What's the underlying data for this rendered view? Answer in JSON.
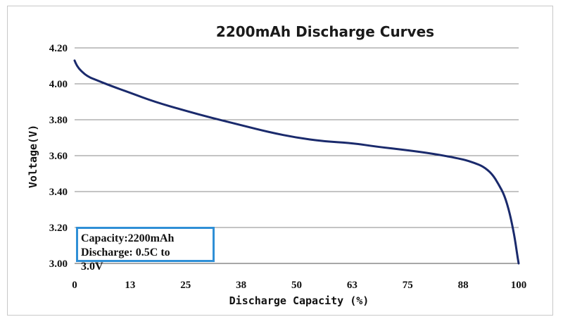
{
  "chart_data": {
    "type": "line",
    "title": "2200mAh  Discharge  Curves",
    "xlabel": "Discharge  Capacity (%)",
    "ylabel": "Voltage(V)",
    "x_ticks": [
      "0",
      "13",
      "25",
      "38",
      "50",
      "63",
      "75",
      "88",
      "100"
    ],
    "x_tick_values": [
      0,
      12.5,
      25,
      37.5,
      50,
      62.5,
      75,
      87.5,
      100
    ],
    "y_ticks": [
      "3.00",
      "3.20",
      "3.40",
      "3.60",
      "3.80",
      "4.00",
      "4.20"
    ],
    "xlim": [
      0,
      100
    ],
    "ylim": [
      3.0,
      4.2
    ],
    "grid": "horizontal",
    "series": [
      {
        "color": "#1a2a6c",
        "points": [
          [
            0,
            4.13
          ],
          [
            0.5,
            4.1
          ],
          [
            1.5,
            4.07
          ],
          [
            3,
            4.04
          ],
          [
            5,
            4.02
          ],
          [
            8,
            3.99
          ],
          [
            12.5,
            3.95
          ],
          [
            18,
            3.9
          ],
          [
            25,
            3.85
          ],
          [
            31,
            3.81
          ],
          [
            37.5,
            3.77
          ],
          [
            44,
            3.73
          ],
          [
            50,
            3.7
          ],
          [
            56,
            3.68
          ],
          [
            62.5,
            3.67
          ],
          [
            68,
            3.65
          ],
          [
            75,
            3.63
          ],
          [
            81,
            3.61
          ],
          [
            87.5,
            3.58
          ],
          [
            90,
            3.56
          ],
          [
            92,
            3.54
          ],
          [
            94,
            3.5
          ],
          [
            95.5,
            3.44
          ],
          [
            96.8,
            3.38
          ],
          [
            98,
            3.28
          ],
          [
            99,
            3.16
          ],
          [
            99.6,
            3.06
          ],
          [
            100,
            3.0
          ]
        ]
      }
    ],
    "annotation": {
      "line1": "Capacity:2200mAh",
      "line2": "Discharge: 0.5C to",
      "line3": "3.0V"
    },
    "colors": {
      "grid": "#8a8a8a",
      "annotation_border": "#2f8fd6"
    }
  }
}
